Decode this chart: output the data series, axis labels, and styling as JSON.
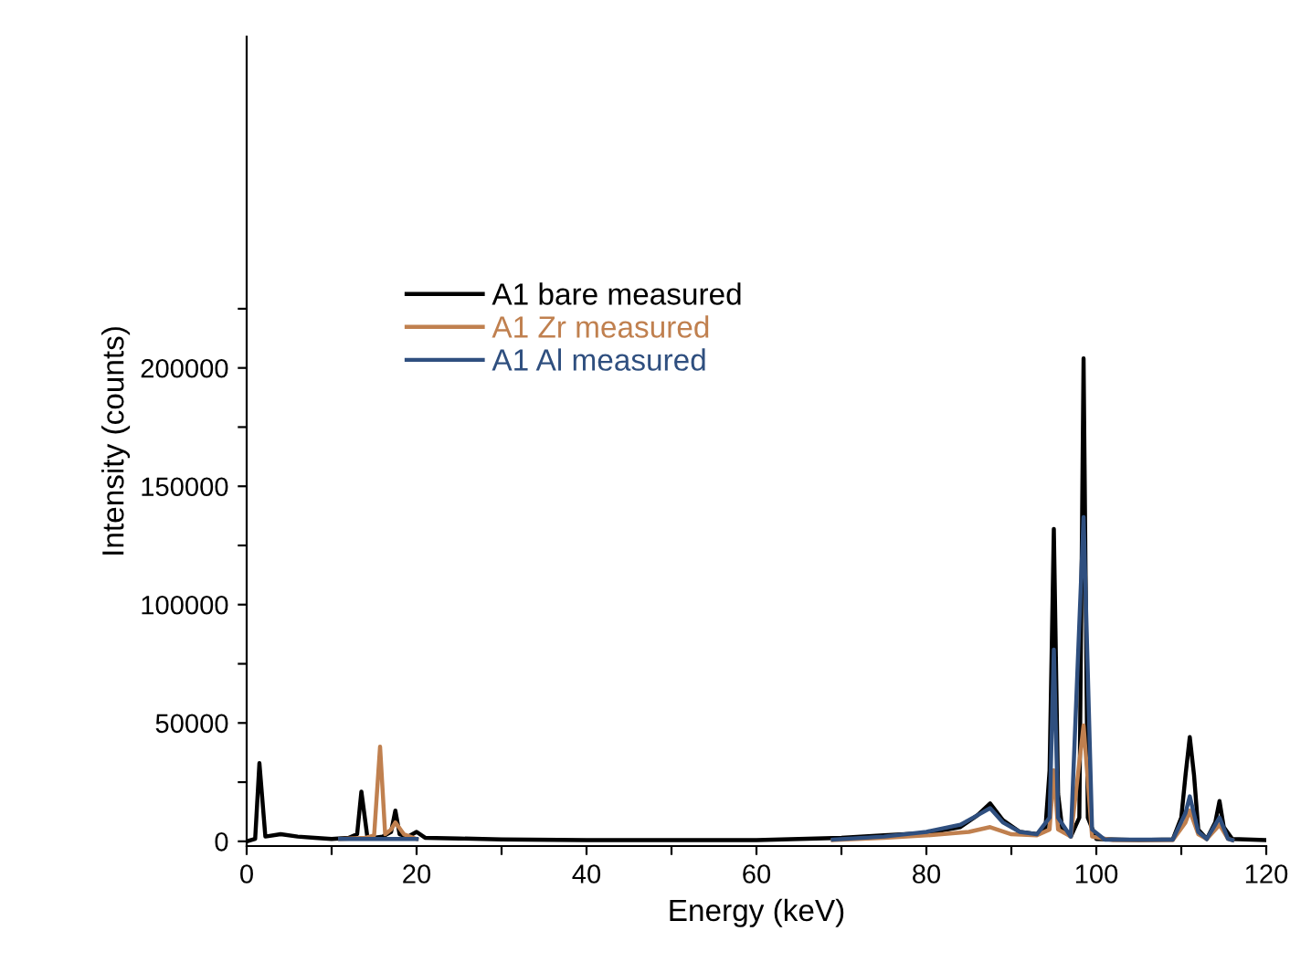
{
  "chart_data": {
    "type": "line",
    "xlabel": "Energy (keV)",
    "ylabel": "Intensity (counts)",
    "xlim": [
      0,
      120
    ],
    "ylim": [
      -2000,
      340000
    ],
    "xticks": [
      0,
      {
        "value": 10,
        "label": null
      },
      20,
      {
        "value": 30,
        "label": null
      },
      40,
      {
        "value": 50,
        "label": null
      },
      60,
      {
        "value": 70,
        "label": null
      },
      80,
      {
        "value": 90,
        "label": null
      },
      100,
      {
        "value": 110,
        "label": null
      },
      120
    ],
    "yticks": [
      0,
      {
        "value": 25000,
        "label": null
      },
      50000,
      {
        "value": 75000,
        "label": null
      },
      100000,
      {
        "value": 125000,
        "label": null
      },
      150000,
      {
        "value": 175000,
        "label": null
      },
      200000,
      {
        "value": 225000,
        "label": null
      }
    ],
    "grid": false,
    "legend": "top left",
    "marker": "none",
    "line_style": "solid",
    "series": [
      {
        "name": "A1 bare measured",
        "color": "#000000",
        "x": [
          0,
          1,
          1.5,
          2.2,
          4,
          6,
          8,
          10,
          12,
          13,
          13.5,
          14.2,
          15,
          16,
          17,
          17.5,
          18,
          19,
          20,
          21,
          25,
          30,
          40,
          50,
          60,
          70,
          75,
          80,
          84,
          86,
          87.5,
          89,
          91,
          93,
          94,
          94.5,
          95,
          95.5,
          96,
          97,
          98,
          98.5,
          99,
          100,
          105,
          109,
          110,
          110.5,
          111,
          111.5,
          112,
          113,
          114,
          114.5,
          115,
          116,
          120
        ],
        "values": [
          0,
          1000,
          33000,
          2000,
          3000,
          2000,
          1500,
          1000,
          1500,
          3000,
          21000,
          2000,
          1500,
          2000,
          4000,
          13000,
          3000,
          2000,
          4000,
          1500,
          1200,
          800,
          500,
          500,
          500,
          1500,
          2500,
          3500,
          6000,
          11000,
          16000,
          9000,
          4000,
          3000,
          5000,
          30000,
          132000,
          20000,
          5000,
          2000,
          10000,
          204000,
          10000,
          1000,
          500,
          800,
          10000,
          28000,
          44000,
          28000,
          5000,
          1000,
          8000,
          17000,
          6000,
          1000,
          500
        ]
      },
      {
        "name": "A1 Zr measured",
        "color": "#c0804f",
        "x": [
          11,
          14,
          15,
          15.7,
          16.3,
          17,
          17.5,
          18.5,
          20,
          40,
          69,
          75,
          80,
          85,
          87.5,
          90,
          93,
          94.5,
          95,
          95.5,
          97,
          98.5,
          99.5,
          102,
          109,
          110.5,
          111,
          112,
          113,
          114.5,
          115.5,
          116
        ],
        "values": [
          1000,
          1500,
          2500,
          40000,
          3000,
          5000,
          8000,
          3000,
          1000,
          null,
          500,
          1500,
          2500,
          4000,
          6000,
          3000,
          2500,
          5000,
          30000,
          5000,
          2000,
          49000,
          2000,
          500,
          500,
          8000,
          13000,
          3000,
          1000,
          7000,
          1000,
          500
        ]
      },
      {
        "name": "A1 Al measured",
        "color": "#2f4f7f",
        "x": [
          11,
          20,
          40,
          69,
          75,
          80,
          84,
          86,
          87.5,
          89,
          91,
          93,
          94.5,
          95,
          95.5,
          97,
          98.5,
          99.5,
          101,
          109,
          110.5,
          111,
          112,
          113,
          114.5,
          115.5,
          116
        ],
        "values": [
          1000,
          1000,
          null,
          700,
          2000,
          4000,
          7000,
          11000,
          14000,
          8000,
          4000,
          3000,
          10000,
          81000,
          10000,
          2000,
          137000,
          5000,
          700,
          700,
          12000,
          19000,
          4000,
          1000,
          10000,
          1000,
          500
        ]
      }
    ]
  }
}
